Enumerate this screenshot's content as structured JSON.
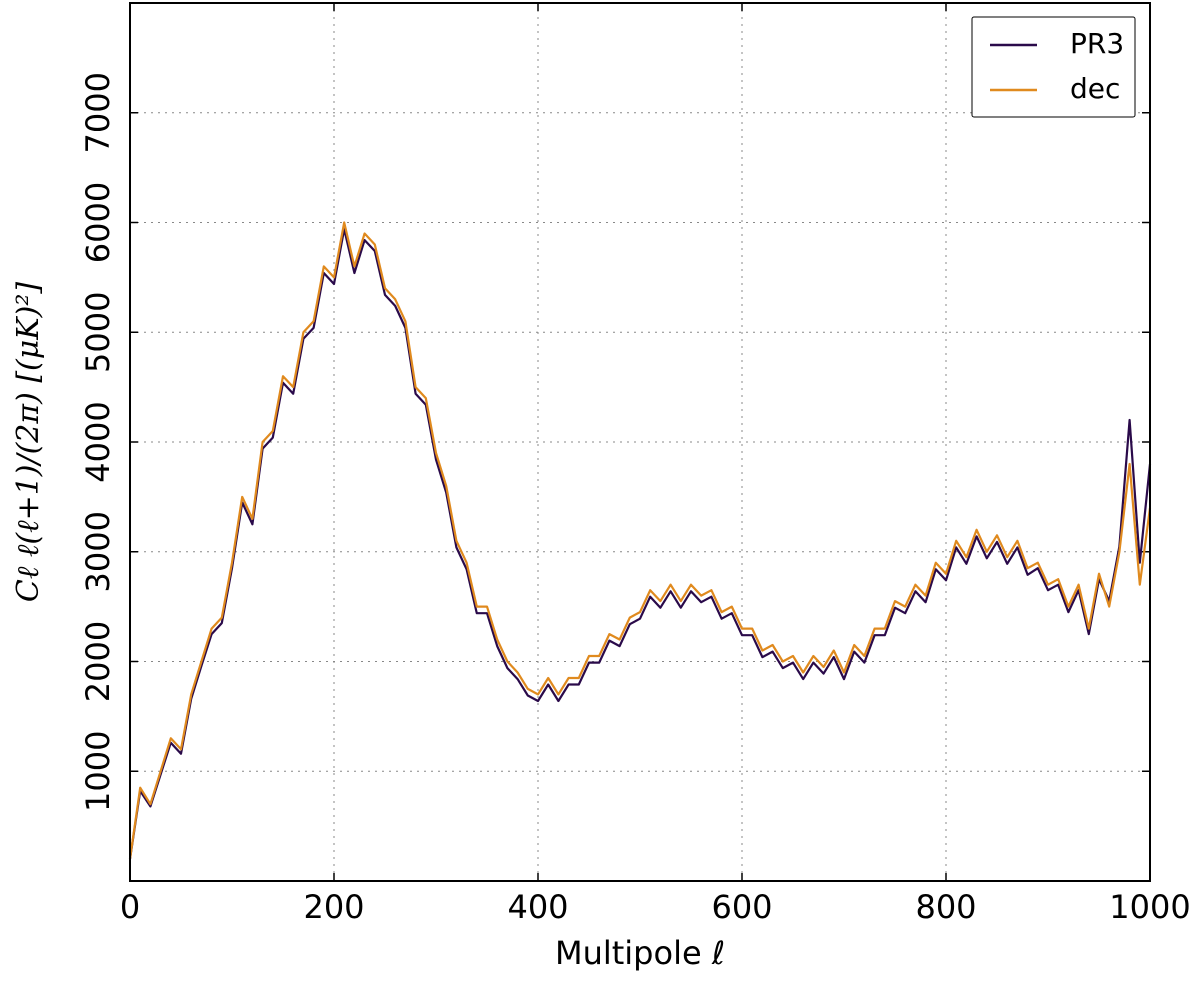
{
  "chart_data": {
    "type": "line",
    "xlabel": "Multipole ℓ",
    "ylabel": "Cℓ ℓ(ℓ+1)/(2π) [(μK)²]",
    "x": [
      0,
      10,
      20,
      30,
      40,
      50,
      60,
      70,
      80,
      90,
      100,
      110,
      120,
      130,
      140,
      150,
      160,
      170,
      180,
      190,
      200,
      210,
      220,
      230,
      240,
      250,
      260,
      270,
      280,
      290,
      300,
      310,
      320,
      330,
      340,
      350,
      360,
      370,
      380,
      390,
      400,
      410,
      420,
      430,
      440,
      450,
      460,
      470,
      480,
      490,
      500,
      510,
      520,
      530,
      540,
      550,
      560,
      570,
      580,
      590,
      600,
      610,
      620,
      630,
      640,
      650,
      660,
      670,
      680,
      690,
      700,
      710,
      720,
      730,
      740,
      750,
      760,
      770,
      780,
      790,
      800,
      810,
      820,
      830,
      840,
      850,
      860,
      870,
      880,
      890,
      900,
      910,
      920,
      930,
      940,
      950,
      960,
      970,
      980,
      990,
      1000
    ],
    "series": [
      {
        "name": "PR3",
        "color": "#2a0a4a",
        "values": [
          200,
          820,
          680,
          970,
          1260,
          1160,
          1660,
          1960,
          2250,
          2350,
          2850,
          3450,
          3250,
          3940,
          4040,
          4540,
          4440,
          4940,
          5040,
          5540,
          5440,
          5940,
          5540,
          5840,
          5740,
          5340,
          5240,
          5040,
          4440,
          4340,
          3840,
          3540,
          3040,
          2840,
          2440,
          2440,
          2140,
          1940,
          1840,
          1690,
          1640,
          1790,
          1640,
          1790,
          1790,
          1990,
          1990,
          2190,
          2140,
          2340,
          2390,
          2590,
          2490,
          2640,
          2490,
          2640,
          2540,
          2590,
          2390,
          2440,
          2240,
          2240,
          2040,
          2090,
          1940,
          1990,
          1840,
          1990,
          1890,
          2040,
          1840,
          2090,
          1990,
          2240,
          2240,
          2490,
          2440,
          2640,
          2540,
          2840,
          2740,
          3040,
          2890,
          3140,
          2940,
          3090,
          2890,
          3040,
          2790,
          2850,
          2650,
          2700,
          2450,
          2650,
          2250,
          2750,
          2550,
          3050,
          4200,
          2900,
          3800
        ]
      },
      {
        "name": "dec",
        "color": "#e08a1e",
        "values": [
          200,
          850,
          700,
          1000,
          1300,
          1200,
          1700,
          2000,
          2300,
          2400,
          2900,
          3500,
          3300,
          4000,
          4100,
          4600,
          4500,
          5000,
          5100,
          5600,
          5500,
          6000,
          5600,
          5900,
          5800,
          5400,
          5300,
          5100,
          4500,
          4400,
          3900,
          3600,
          3100,
          2900,
          2500,
          2500,
          2200,
          2000,
          1900,
          1750,
          1700,
          1850,
          1700,
          1850,
          1850,
          2050,
          2050,
          2250,
          2200,
          2400,
          2450,
          2650,
          2550,
          2700,
          2550,
          2700,
          2600,
          2650,
          2450,
          2500,
          2300,
          2300,
          2100,
          2150,
          2000,
          2050,
          1900,
          2050,
          1950,
          2100,
          1900,
          2150,
          2050,
          2300,
          2300,
          2550,
          2500,
          2700,
          2600,
          2900,
          2800,
          3100,
          2950,
          3200,
          3000,
          3150,
          2950,
          3100,
          2850,
          2900,
          2700,
          2750,
          2500,
          2700,
          2300,
          2800,
          2500,
          3000,
          3800,
          2700,
          3400
        ]
      }
    ],
    "xlim": [
      0,
      1000
    ],
    "xticks": [
      0,
      200,
      400,
      600,
      800,
      1000
    ],
    "ylim": [
      0,
      8000
    ],
    "yticks": [
      1000,
      2000,
      3000,
      4000,
      5000,
      6000,
      7000
    ],
    "grid": true,
    "legend": "upper right"
  }
}
